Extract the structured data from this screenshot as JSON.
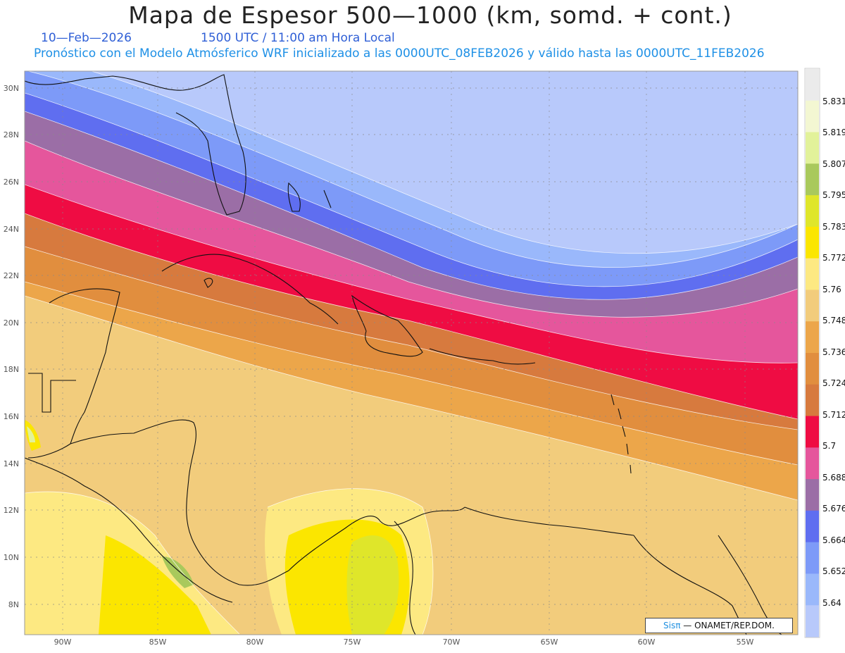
{
  "header": {
    "title": "Mapa de Espesor 500—1000 (km, somd. + cont.)",
    "date": "10—Feb—2026",
    "time": "1500 UTC / 11:00 am Hora Local",
    "model": "Pronóstico con el Modelo Atmósferico WRF inicializado a las 0000UTC_08FEB2026 y válido hasta las  0000UTC_11FEB2026"
  },
  "axes": {
    "lon_ticks": [
      "90W",
      "85W",
      "80W",
      "75W",
      "70W",
      "65W",
      "60W",
      "55W"
    ],
    "lat_ticks": [
      "30N",
      "28N",
      "26N",
      "24N",
      "22N",
      "20N",
      "18N",
      "16N",
      "14N",
      "12N",
      "10N",
      "8N"
    ]
  },
  "legend": {
    "labels": [
      "5.831",
      "5.819",
      "5.807",
      "5.795",
      "5.783",
      "5.772",
      "5.76",
      "5.748",
      "5.736",
      "5.724",
      "5.712",
      "5.7",
      "5.688",
      "5.676",
      "5.664",
      "5.652",
      "5.64"
    ],
    "colors": [
      "#ebebeb",
      "#f3f7d2",
      "#e2f29a",
      "#a9c95c",
      "#dfe62a",
      "#fbe600",
      "#fde982",
      "#f2cc7c",
      "#eca64a",
      "#e18e3e",
      "#d77a3e",
      "#ef0c43",
      "#e5569c",
      "#9b6ea6",
      "#5f6ef0",
      "#7d9af8",
      "#9ab8fb",
      "#b8c9fb"
    ]
  },
  "credit": {
    "brand": "Sisπ",
    "text": " — ONAMET/REP.DOM."
  }
}
